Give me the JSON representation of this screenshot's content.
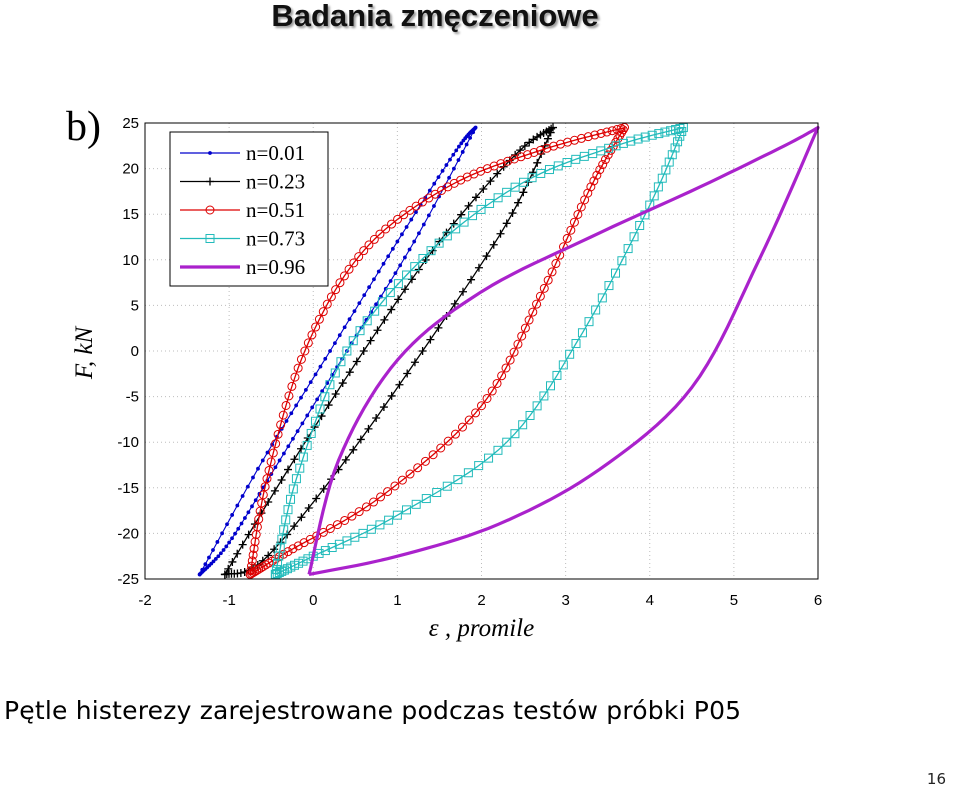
{
  "slide": {
    "title": "Badania zmęczeniowe",
    "panel_label": "b)",
    "caption": "Pętle histerezy zarejestrowane podczas testów próbki P05",
    "page_number": "16"
  },
  "chart_data": {
    "type": "line",
    "xlabel": "ε , promile",
    "ylabel": "F, kN",
    "xlim": [
      -2,
      6
    ],
    "ylim": [
      -25,
      25
    ],
    "xticks": [
      -2,
      -1,
      0,
      1,
      2,
      3,
      4,
      5,
      6
    ],
    "yticks": [
      -25,
      -20,
      -15,
      -10,
      -5,
      0,
      5,
      10,
      15,
      20,
      25
    ],
    "grid": true,
    "legend_position": "top-left",
    "series": [
      {
        "name": "n=0.01",
        "color": "#0000cc",
        "marker": "dot",
        "loading": [
          [
            -1.35,
            -24.5
          ],
          [
            -0.6,
            -12
          ],
          [
            0.2,
            0
          ],
          [
            1.0,
            12
          ],
          [
            1.7,
            22
          ],
          [
            1.93,
            24.5
          ]
        ],
        "unloading": [
          [
            1.93,
            24.5
          ],
          [
            1.2,
            12
          ],
          [
            0.4,
            0
          ],
          [
            -0.4,
            -12
          ],
          [
            -1.0,
            -21
          ],
          [
            -1.35,
            -24.5
          ]
        ]
      },
      {
        "name": "n=0.23",
        "color": "#000000",
        "marker": "plus",
        "loading": [
          [
            -1.05,
            -24.5
          ],
          [
            -0.3,
            -13
          ],
          [
            0.6,
            0
          ],
          [
            1.5,
            12
          ],
          [
            2.4,
            21.5
          ],
          [
            2.85,
            24.5
          ]
        ],
        "unloading": [
          [
            2.85,
            24.5
          ],
          [
            2.3,
            14
          ],
          [
            1.3,
            0
          ],
          [
            0.3,
            -13
          ],
          [
            -0.6,
            -23
          ],
          [
            -1.05,
            -24.5
          ]
        ]
      },
      {
        "name": "n=0.51",
        "color": "#dd0000",
        "marker": "circle",
        "loading": [
          [
            -0.75,
            -24.5
          ],
          [
            -0.55,
            -14
          ],
          [
            -0.1,
            0
          ],
          [
            0.6,
            11
          ],
          [
            1.6,
            18
          ],
          [
            2.7,
            22
          ],
          [
            3.7,
            24.5
          ]
        ],
        "unloading": [
          [
            3.7,
            24.5
          ],
          [
            3.3,
            18
          ],
          [
            2.7,
            6
          ],
          [
            2.0,
            -6
          ],
          [
            0.8,
            -16
          ],
          [
            -0.3,
            -22
          ],
          [
            -0.75,
            -24.5
          ]
        ]
      },
      {
        "name": "n=0.73",
        "color": "#22bbbb",
        "marker": "square",
        "loading": [
          [
            -0.45,
            -24.5
          ],
          [
            -0.2,
            -14
          ],
          [
            0.4,
            0
          ],
          [
            1.4,
            11
          ],
          [
            2.5,
            18.5
          ],
          [
            3.6,
            22.5
          ],
          [
            4.4,
            24.5
          ]
        ],
        "unloading": [
          [
            4.4,
            24.5
          ],
          [
            4.0,
            16
          ],
          [
            3.2,
            2
          ],
          [
            2.3,
            -10
          ],
          [
            1.0,
            -18
          ],
          [
            0.0,
            -22.5
          ],
          [
            -0.45,
            -24.5
          ]
        ]
      },
      {
        "name": "n=0.96",
        "color": "#aa22cc",
        "marker": "none",
        "loading": [
          [
            -0.05,
            -24.5
          ],
          [
            0.3,
            -12
          ],
          [
            1.0,
            -1
          ],
          [
            2.0,
            6.5
          ],
          [
            3.3,
            12.5
          ],
          [
            4.6,
            18
          ],
          [
            5.6,
            22.5
          ],
          [
            6.0,
            24.5
          ]
        ],
        "unloading": [
          [
            6.0,
            24.5
          ],
          [
            5.3,
            10
          ],
          [
            4.5,
            -4
          ],
          [
            3.4,
            -13
          ],
          [
            2.2,
            -19
          ],
          [
            1.0,
            -22.5
          ],
          [
            -0.05,
            -24.5
          ]
        ]
      }
    ]
  }
}
